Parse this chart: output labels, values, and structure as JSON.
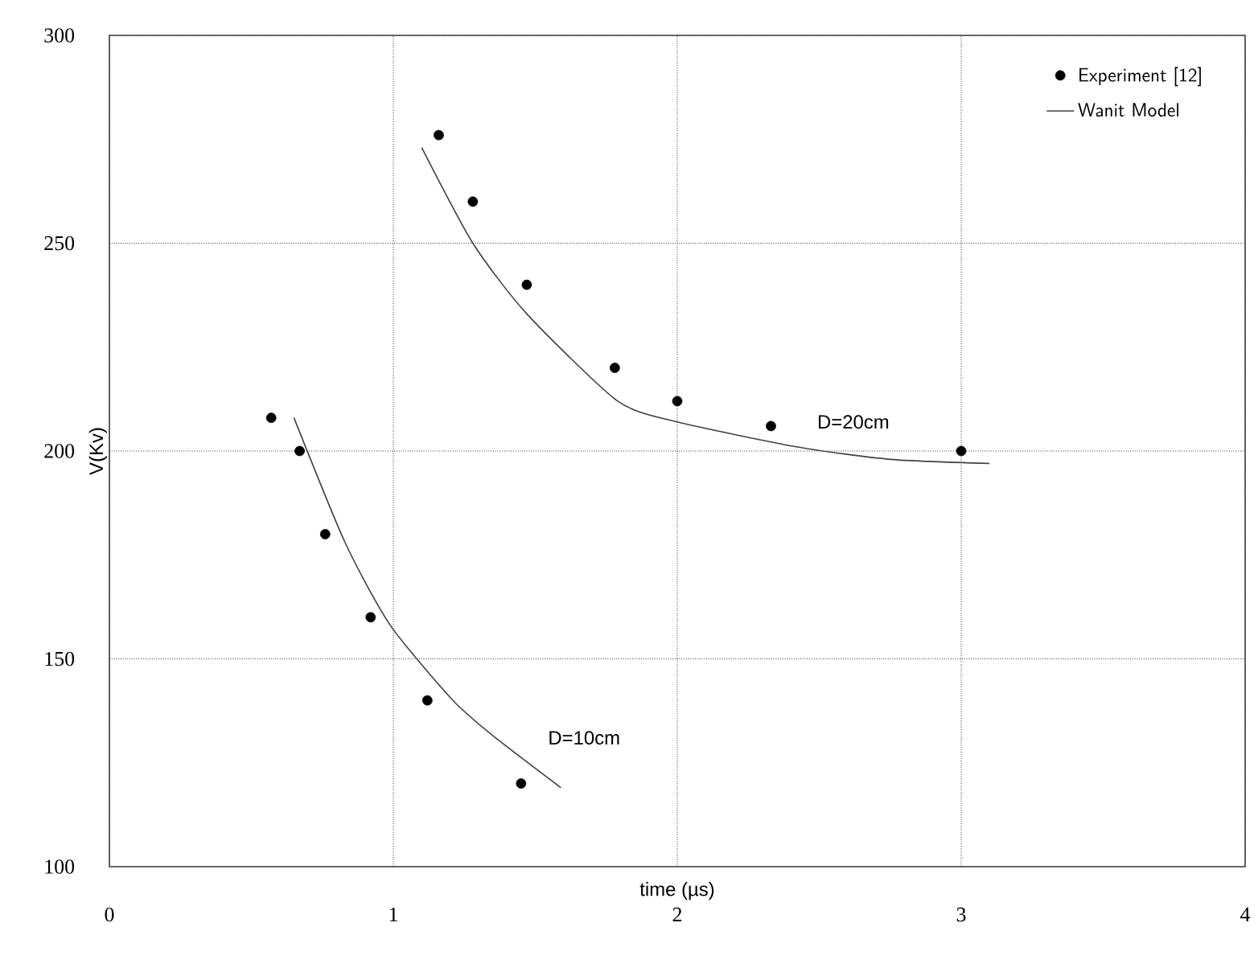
{
  "chart_data": {
    "type": "scatter",
    "xlabel": "time (µs)",
    "ylabel": "V(Kv)",
    "xlim": [
      0,
      4
    ],
    "ylim": [
      100,
      300
    ],
    "xticks": [
      0,
      1,
      2,
      3,
      4
    ],
    "yticks": [
      100,
      150,
      200,
      250,
      300
    ],
    "grid": true,
    "legend": "top right",
    "series": [
      {
        "name": "Experiment [12]",
        "marker": "circle",
        "color": "#000000",
        "x": [
          0.57,
          0.67,
          0.76,
          0.92,
          1.12,
          1.45
        ],
        "values": [
          208,
          200,
          180,
          160,
          140,
          120
        ]
      },
      {
        "marker": "circle",
        "color": "#000000",
        "x": [
          1.16,
          1.28,
          1.47,
          1.78,
          2.0,
          2.33,
          3.0
        ],
        "values": [
          276,
          260,
          240,
          220,
          212,
          206,
          200
        ]
      },
      {
        "name": "Wanit Model",
        "type": "line",
        "marker": "none",
        "line_style": "solid",
        "color": "#404040",
        "x": [
          0.65,
          0.83,
          0.99,
          1.21,
          1.36,
          1.59
        ],
        "values": [
          208,
          178,
          158,
          140,
          131,
          119
        ]
      },
      {
        "type": "line",
        "marker": "none",
        "line_style": "solid",
        "color": "#404040",
        "x": [
          1.1,
          1.28,
          1.47,
          1.79,
          2.0,
          2.42,
          2.75,
          3.1
        ],
        "values": [
          273,
          250,
          233,
          212,
          207,
          201,
          198,
          197
        ]
      }
    ],
    "annotations": [
      "D=20cm",
      "D=10cm"
    ]
  }
}
